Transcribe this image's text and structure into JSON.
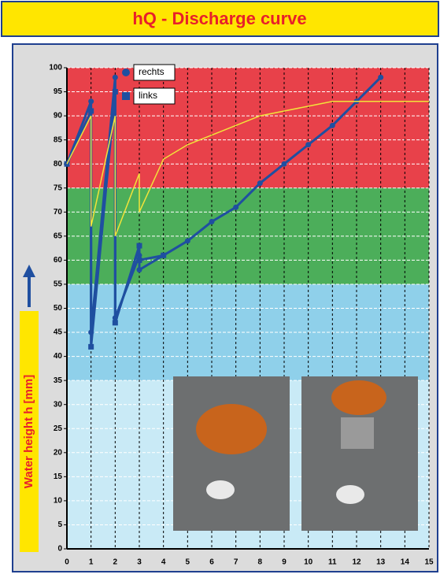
{
  "chart_data": {
    "type": "line",
    "title": "hQ - Discharge curve",
    "y_label": "Water height h [mm]",
    "xlim": [
      0,
      15
    ],
    "xticks": [
      0,
      1,
      2,
      3,
      4,
      5,
      6,
      7,
      8,
      9,
      10,
      11,
      12,
      13,
      14,
      15
    ],
    "ylim": [
      0,
      100
    ],
    "yticks": [
      0,
      5,
      10,
      15,
      20,
      25,
      30,
      35,
      40,
      45,
      50,
      55,
      60,
      65,
      70,
      75,
      80,
      85,
      90,
      95,
      100
    ],
    "grid": true,
    "bands": [
      {
        "from": 75,
        "to": 100,
        "color": "#e8414a"
      },
      {
        "from": 55,
        "to": 75,
        "color": "#4cae5a"
      },
      {
        "from": 35,
        "to": 55,
        "color": "#8fd0ea"
      },
      {
        "from": 0,
        "to": 35,
        "color": "#c9eaf6"
      }
    ],
    "series": [
      {
        "name": "rechts",
        "color": "#1f4fa0",
        "marker": "circle",
        "x": [
          0,
          1,
          1,
          2,
          2,
          3,
          3,
          4,
          5,
          6,
          7,
          8,
          9,
          10,
          11,
          12,
          13
        ],
        "values": [
          80,
          93,
          45,
          98,
          48,
          61,
          58,
          61,
          64,
          68,
          71,
          76,
          80,
          84,
          88,
          93,
          98
        ]
      },
      {
        "name": "links",
        "color": "#1f4fa0",
        "marker": "square",
        "x": [
          0,
          1,
          1,
          2,
          2,
          3,
          3,
          4
        ],
        "values": [
          80,
          91,
          42,
          95,
          47,
          63,
          60,
          61
        ]
      },
      {
        "color": "#f2e33a",
        "marker": "none",
        "x": [
          0,
          1,
          1,
          2,
          2,
          3,
          3,
          4,
          5,
          7,
          8,
          10,
          11,
          15
        ],
        "values": [
          80,
          90,
          67,
          90,
          65,
          78,
          70,
          81,
          84,
          88,
          90,
          92,
          93,
          93
        ]
      }
    ]
  }
}
